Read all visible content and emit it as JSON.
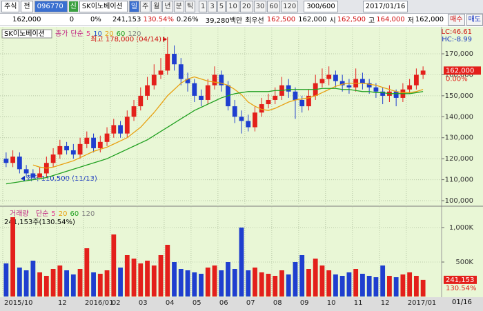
{
  "toolbar": {
    "market": "주식",
    "scope": "전",
    "code": "096770",
    "new_badge": "신",
    "name": "SK이노베이션",
    "periods": [
      "일",
      "주",
      "월",
      "년",
      "분",
      "틱"
    ],
    "intervals": [
      "1",
      "3",
      "5",
      "10",
      "20",
      "30",
      "60",
      "120"
    ],
    "count": "300/600",
    "date": "2017/01/16"
  },
  "info_bar": {
    "price": "162,000",
    "change": "0",
    "change_rate": "0%",
    "volume": "241,153",
    "volume_ratio": "130.54%",
    "turnover": "0.26%",
    "amount": "39,280백만",
    "best_label": "최우선",
    "ask": "162,500",
    "bid": "162,000",
    "open_label": "시",
    "open": "162,500",
    "high_label": "고",
    "high": "164,000",
    "low_label": "저",
    "low": "162,000",
    "buy": "매수",
    "sell": "매도"
  },
  "chart_data": [
    {
      "type": "candlestick",
      "title": "SK이노베이션",
      "legend": [
        {
          "label": "종가",
          "color": "#c02080"
        },
        {
          "label": "단순",
          "color": "#c02080"
        },
        {
          "label": "5",
          "color": "#e04090"
        },
        {
          "label": "10",
          "color": "#2050d0"
        },
        {
          "label": "20",
          "color": "#e8a010"
        },
        {
          "label": "60",
          "color": "#20a020"
        },
        {
          "label": "120",
          "color": "#808080"
        }
      ],
      "high_note": "최고 178,000 (04/14)",
      "low_note": "최저 110,500 (11/13)",
      "lc": "LC:46.61",
      "hc": "HC:-8.99",
      "last_label": "162,000",
      "change_label": "0.00%",
      "date_label": "01/16",
      "up_color": "#e3201b",
      "down_color": "#1f3fcf",
      "categories": [
        "2015/10",
        null,
        null,
        null,
        null,
        null,
        null,
        null,
        "12",
        null,
        null,
        null,
        "2016/01",
        null,
        null,
        null,
        "02",
        null,
        null,
        null,
        "03",
        null,
        null,
        null,
        "04",
        null,
        null,
        null,
        "05",
        null,
        null,
        null,
        "06",
        null,
        null,
        null,
        "07",
        null,
        null,
        null,
        "08",
        null,
        null,
        null,
        "09",
        null,
        null,
        null,
        "10",
        null,
        null,
        null,
        "11",
        null,
        null,
        null,
        "12",
        null,
        null,
        null,
        "2017/01",
        null,
        null
      ],
      "open": [
        120000,
        118000,
        121000,
        115000,
        113000,
        111000,
        113000,
        118000,
        122000,
        126000,
        124000,
        122000,
        127000,
        130000,
        125000,
        128000,
        132000,
        136000,
        132000,
        140000,
        145000,
        150000,
        155000,
        160000,
        162000,
        170000,
        165000,
        158000,
        156000,
        150000,
        148000,
        155000,
        160000,
        155000,
        145000,
        140000,
        138000,
        135000,
        142000,
        146000,
        148000,
        150000,
        155000,
        152000,
        148000,
        145000,
        150000,
        156000,
        158000,
        160000,
        157000,
        155000,
        154000,
        158000,
        156000,
        154000,
        152000,
        150000,
        152000,
        149000,
        153000,
        155000,
        160000
      ],
      "high": [
        123000,
        124000,
        123000,
        117000,
        115000,
        116000,
        121000,
        125000,
        129000,
        128000,
        127000,
        130000,
        133000,
        132000,
        131000,
        135000,
        139000,
        138000,
        143000,
        148000,
        154000,
        159000,
        165000,
        168000,
        178000,
        174000,
        168000,
        161000,
        158000,
        153000,
        158000,
        164000,
        162000,
        157000,
        148000,
        143000,
        141000,
        145000,
        149000,
        151000,
        154000,
        159000,
        158000,
        154000,
        150000,
        153000,
        160000,
        163000,
        164000,
        162000,
        160000,
        158000,
        163000,
        161000,
        158000,
        156000,
        154000,
        155000,
        153000,
        156000,
        158000,
        163000,
        164000
      ],
      "low": [
        116000,
        116000,
        113000,
        111000,
        110500,
        111000,
        111000,
        116000,
        120000,
        122000,
        120000,
        120000,
        125000,
        123000,
        123000,
        126000,
        130000,
        130000,
        130000,
        138000,
        143000,
        148000,
        153000,
        158000,
        160000,
        162000,
        155000,
        152000,
        147000,
        145000,
        146000,
        153000,
        152000,
        143000,
        137000,
        132000,
        133000,
        133000,
        140000,
        144000,
        146000,
        148000,
        149000,
        139000,
        142000,
        143000,
        148000,
        154000,
        155000,
        154000,
        152000,
        151000,
        152000,
        153000,
        151000,
        149000,
        146000,
        147000,
        145000,
        147000,
        151000,
        153000,
        158000
      ],
      "close": [
        118000,
        121000,
        115000,
        113000,
        111000,
        113000,
        118000,
        122000,
        126000,
        124000,
        122000,
        127000,
        130000,
        125000,
        128000,
        132000,
        136000,
        132000,
        140000,
        145000,
        150000,
        155000,
        160000,
        162000,
        170000,
        165000,
        158000,
        156000,
        150000,
        148000,
        155000,
        160000,
        155000,
        145000,
        140000,
        138000,
        135000,
        142000,
        146000,
        148000,
        150000,
        155000,
        152000,
        148000,
        145000,
        150000,
        156000,
        158000,
        160000,
        157000,
        155000,
        154000,
        158000,
        156000,
        154000,
        152000,
        150000,
        152000,
        149000,
        153000,
        155000,
        160000,
        162000
      ],
      "series": [
        {
          "color": "#e8a010",
          "values": [
            null,
            null,
            null,
            null,
            117000,
            116000,
            115500,
            116000,
            117000,
            118000,
            119000,
            120500,
            122000,
            123500,
            124500,
            125500,
            127000,
            128500,
            130000,
            132500,
            135000,
            138500,
            142000,
            146000,
            150000,
            153000,
            156000,
            158000,
            159000,
            158000,
            157000,
            156500,
            156000,
            155000,
            153000,
            150500,
            147000,
            145000,
            143500,
            143000,
            144000,
            145500,
            147000,
            148000,
            148500,
            149000,
            150000,
            151500,
            153000,
            154500,
            155500,
            156000,
            156000,
            156000,
            155500,
            155000,
            154000,
            153000,
            152000,
            151500,
            151500,
            152000,
            153000
          ]
        },
        {
          "color": "#20a020",
          "values": [
            108000,
            108500,
            109000,
            109500,
            110000,
            110500,
            111000,
            112000,
            113000,
            114000,
            115000,
            116000,
            117000,
            118000,
            119000,
            120000,
            121500,
            123000,
            124500,
            126000,
            127500,
            129000,
            131000,
            133000,
            135000,
            137000,
            139000,
            141000,
            143000,
            144500,
            146000,
            147500,
            149000,
            150000,
            151000,
            151500,
            152000,
            152000,
            152000,
            152000,
            152500,
            152500,
            153000,
            153000,
            153000,
            153000,
            153000,
            153500,
            153500,
            153500,
            153000,
            153000,
            152500,
            152000,
            152000,
            151500,
            151500,
            151000,
            151000,
            151000,
            151000,
            151500,
            152000
          ]
        }
      ],
      "ylim": [
        97700,
        182500
      ],
      "yticks": [
        {
          "value": 100000,
          "label": "100,000"
        },
        {
          "value": 110000,
          "label": "110,000"
        },
        {
          "value": 120000,
          "label": "120,000"
        },
        {
          "value": 130000,
          "label": "130,000"
        },
        {
          "value": 140000,
          "label": "140,000"
        },
        {
          "value": 150000,
          "label": "150,000"
        },
        {
          "value": 160000,
          "label": "160,000"
        },
        {
          "value": 170000,
          "label": "170,000"
        }
      ],
      "grid": true
    },
    {
      "type": "bar",
      "title": "거래량",
      "legend": [
        {
          "label": "단순",
          "color": "#c02080"
        },
        {
          "label": "5",
          "color": "#e04090"
        },
        {
          "label": "20",
          "color": "#e8a010"
        },
        {
          "label": "60",
          "color": "#20a020"
        },
        {
          "label": "120",
          "color": "#808080"
        }
      ],
      "summary": "241,153주(130.54%)",
      "last_label": "241,153",
      "ratio_label": "130.54%",
      "values": [
        480000,
        1150000,
        420000,
        380000,
        520000,
        350000,
        300000,
        400000,
        450000,
        380000,
        320000,
        400000,
        700000,
        350000,
        330000,
        380000,
        900000,
        420000,
        600000,
        550000,
        480000,
        520000,
        450000,
        600000,
        750000,
        500000,
        400000,
        380000,
        350000,
        330000,
        420000,
        450000,
        380000,
        500000,
        400000,
        1000000,
        380000,
        420000,
        350000,
        330000,
        300000,
        380000,
        320000,
        500000,
        600000,
        400000,
        550000,
        450000,
        380000,
        320000,
        300000,
        350000,
        400000,
        330000,
        300000,
        280000,
        450000,
        300000,
        280000,
        320000,
        350000,
        300000,
        241153
      ],
      "ylim": [
        0,
        1300000
      ],
      "yticks": [
        {
          "value": 500000,
          "label": "500K"
        },
        {
          "value": 1000000,
          "label": "1,000K"
        }
      ],
      "grid": true
    }
  ]
}
